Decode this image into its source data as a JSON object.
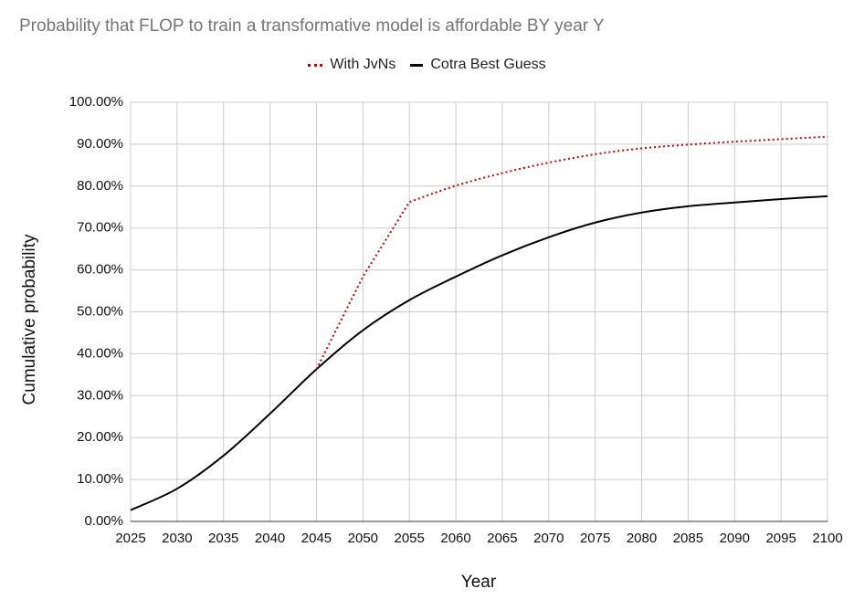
{
  "chart_data": {
    "type": "line",
    "title": "Probability that FLOP to train a transformative model is affordable BY year Y",
    "xlabel": "Year",
    "ylabel": "Cumulative probability",
    "x_ticks": [
      "2025",
      "2030",
      "2035",
      "2040",
      "2045",
      "2050",
      "2055",
      "2060",
      "2065",
      "2070",
      "2075",
      "2080",
      "2085",
      "2090",
      "2095",
      "2100"
    ],
    "y_ticks": [
      "0.00%",
      "10.00%",
      "20.00%",
      "30.00%",
      "40.00%",
      "50.00%",
      "60.00%",
      "70.00%",
      "80.00%",
      "90.00%",
      "100.00%"
    ],
    "xlim": [
      2025,
      2100
    ],
    "ylim": [
      0,
      1
    ],
    "grid": true,
    "legend_position": "top-center",
    "series": [
      {
        "name": "With JvNs",
        "color": "#cc0000",
        "style": "dotted",
        "x": [
          2045,
          2050,
          2055,
          2060,
          2065,
          2070,
          2075,
          2080,
          2085,
          2090,
          2095,
          2100
        ],
        "y": [
          0.363,
          0.584,
          0.762,
          0.801,
          0.831,
          0.856,
          0.876,
          0.89,
          0.899,
          0.906,
          0.912,
          0.918
        ]
      },
      {
        "name": "Cotra Best Guess",
        "color": "#000000",
        "style": "solid",
        "x": [
          2025,
          2030,
          2035,
          2040,
          2045,
          2050,
          2055,
          2060,
          2065,
          2070,
          2075,
          2080,
          2085,
          2090,
          2095,
          2100
        ],
        "y": [
          0.027,
          0.078,
          0.157,
          0.257,
          0.363,
          0.456,
          0.528,
          0.584,
          0.635,
          0.678,
          0.713,
          0.737,
          0.752,
          0.761,
          0.769,
          0.776
        ]
      }
    ]
  }
}
